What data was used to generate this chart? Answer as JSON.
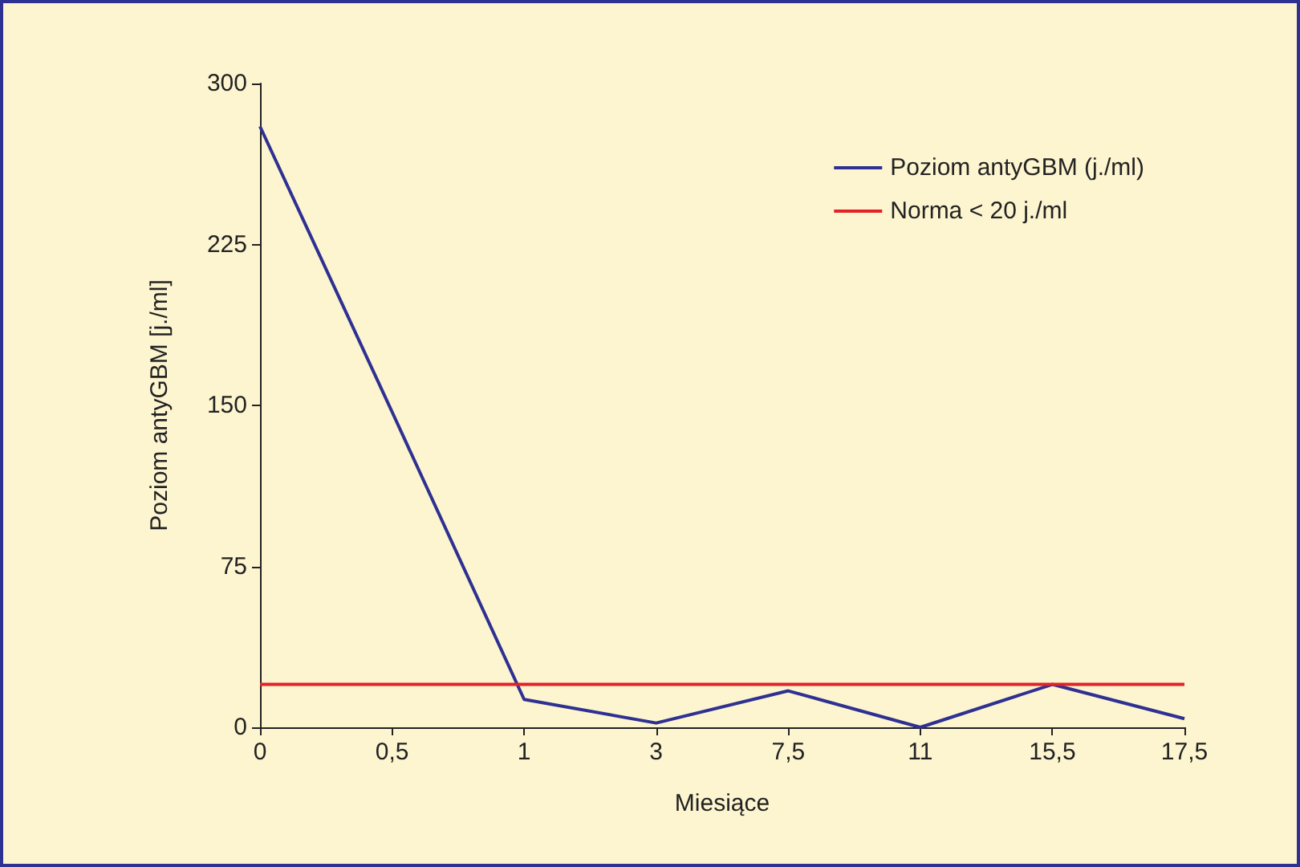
{
  "chart_data": {
    "type": "line",
    "xlabel": "Miesiące",
    "ylabel": "Poziom antyGBM [j./ml]",
    "categories": [
      "0",
      "0,5",
      "1",
      "3",
      "7,5",
      "11",
      "15,5",
      "17,5"
    ],
    "series": [
      {
        "name": "Poziom antyGBM (j./ml)",
        "color": "#2e3192",
        "values": [
          280,
          147,
          13,
          2,
          17,
          0,
          20,
          4
        ]
      },
      {
        "name": "Norma < 20 j./ml",
        "color": "#e42127",
        "values": [
          20,
          20,
          20,
          20,
          20,
          20,
          20,
          20
        ]
      }
    ],
    "ylim": [
      0,
      300
    ],
    "yticks": [
      0,
      75,
      150,
      225,
      300
    ],
    "grid": false,
    "legend": "top right",
    "marker": "none",
    "line_style": "solid"
  }
}
